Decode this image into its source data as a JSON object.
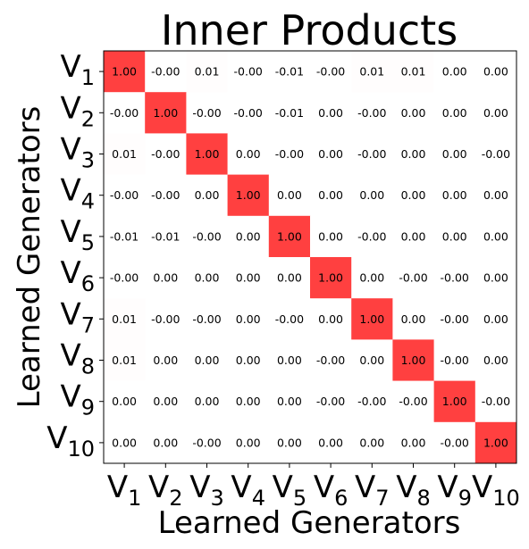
{
  "chart_data": {
    "type": "heatmap",
    "title": "Inner Products",
    "xlabel": "Learned Generators",
    "ylabel": "Learned Generators",
    "x_ticks": [
      {
        "base": "V",
        "sub": "1"
      },
      {
        "base": "V",
        "sub": "2"
      },
      {
        "base": "V",
        "sub": "3"
      },
      {
        "base": "V",
        "sub": "4"
      },
      {
        "base": "V",
        "sub": "5"
      },
      {
        "base": "V",
        "sub": "6"
      },
      {
        "base": "V",
        "sub": "7"
      },
      {
        "base": "V",
        "sub": "8"
      },
      {
        "base": "V",
        "sub": "9"
      },
      {
        "base": "V",
        "sub": "10"
      }
    ],
    "y_ticks": [
      {
        "base": "V",
        "sub": "1"
      },
      {
        "base": "V",
        "sub": "2"
      },
      {
        "base": "V",
        "sub": "3"
      },
      {
        "base": "V",
        "sub": "4"
      },
      {
        "base": "V",
        "sub": "5"
      },
      {
        "base": "V",
        "sub": "6"
      },
      {
        "base": "V",
        "sub": "7"
      },
      {
        "base": "V",
        "sub": "8"
      },
      {
        "base": "V",
        "sub": "9"
      },
      {
        "base": "V",
        "sub": "10"
      }
    ],
    "values": [
      [
        "1.00",
        "-0.00",
        "0.01",
        "-0.00",
        "-0.01",
        "-0.00",
        "0.01",
        "0.01",
        "0.00",
        "0.00"
      ],
      [
        "-0.00",
        "1.00",
        "-0.00",
        "-0.00",
        "-0.01",
        "0.00",
        "-0.00",
        "0.00",
        "0.00",
        "0.00"
      ],
      [
        "0.01",
        "-0.00",
        "1.00",
        "0.00",
        "-0.00",
        "0.00",
        "-0.00",
        "0.00",
        "0.00",
        "-0.00"
      ],
      [
        "-0.00",
        "-0.00",
        "0.00",
        "1.00",
        "0.00",
        "0.00",
        "0.00",
        "0.00",
        "0.00",
        "0.00"
      ],
      [
        "-0.01",
        "-0.01",
        "-0.00",
        "0.00",
        "1.00",
        "0.00",
        "-0.00",
        "0.00",
        "0.00",
        "0.00"
      ],
      [
        "-0.00",
        "0.00",
        "0.00",
        "0.00",
        "0.00",
        "1.00",
        "0.00",
        "-0.00",
        "-0.00",
        "0.00"
      ],
      [
        "0.01",
        "-0.00",
        "-0.00",
        "0.00",
        "-0.00",
        "0.00",
        "1.00",
        "0.00",
        "-0.00",
        "0.00"
      ],
      [
        "0.01",
        "0.00",
        "0.00",
        "0.00",
        "0.00",
        "-0.00",
        "0.00",
        "1.00",
        "-0.00",
        "0.00"
      ],
      [
        "0.00",
        "0.00",
        "0.00",
        "0.00",
        "0.00",
        "-0.00",
        "-0.00",
        "-0.00",
        "1.00",
        "-0.00"
      ],
      [
        "0.00",
        "0.00",
        "-0.00",
        "0.00",
        "0.00",
        "0.00",
        "0.00",
        "0.00",
        "-0.00",
        "1.00"
      ]
    ],
    "color_low": "#ffffff",
    "color_high": "#ff4040",
    "vmin": 0,
    "vmax": 1
  }
}
